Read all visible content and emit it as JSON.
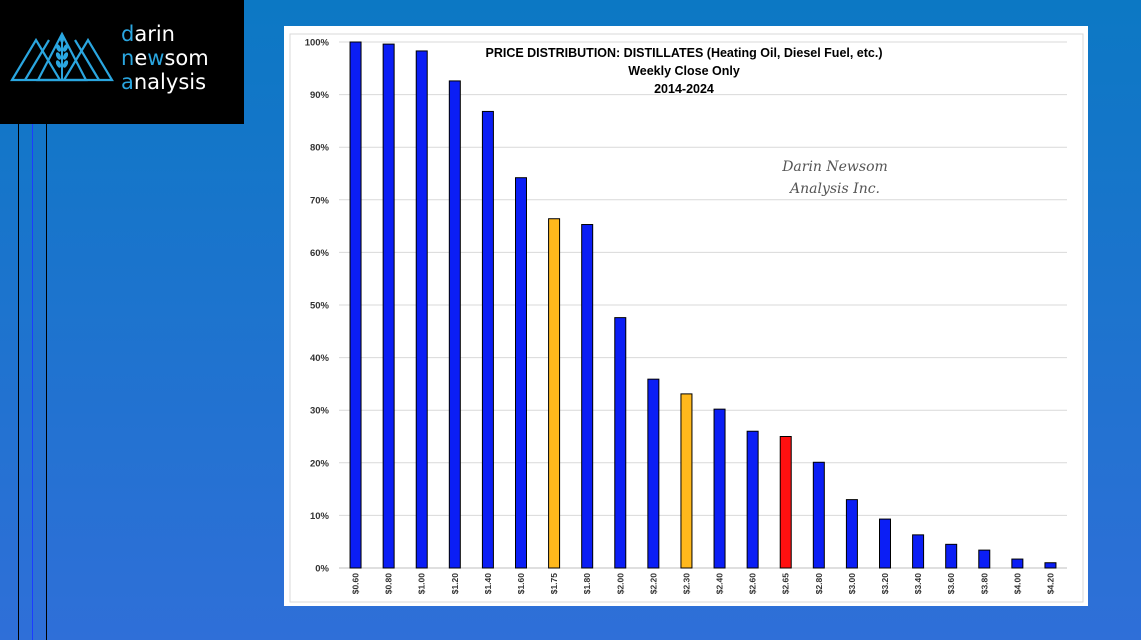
{
  "logo": {
    "line1_initial": "d",
    "line1_rest": "arin",
    "line2_a": "n",
    "line2_b": "e",
    "line2_hl": "w",
    "line2_rest": "som",
    "line3_initial": "a",
    "line3_rest": "nalysis",
    "accent": "#2aa6e0"
  },
  "watermark": {
    "line1": "Darin Newsom",
    "line2": "Analysis Inc."
  },
  "colors": {
    "default_bar": "#0b1ef5",
    "highlight_bar": "#ffb81c",
    "current_bar": "#ff1010"
  },
  "chart_data": {
    "type": "bar",
    "title": "PRICE DISTRIBUTION: DISTILLATES (Heating Oil, Diesel Fuel, etc.)",
    "subtitle1": "Weekly Close Only",
    "subtitle2": "2014-2024",
    "xlabel": "",
    "ylabel": "",
    "ylim": [
      0,
      100
    ],
    "yticks": [
      "0%",
      "10%",
      "20%",
      "30%",
      "40%",
      "50%",
      "60%",
      "70%",
      "80%",
      "90%",
      "100%"
    ],
    "categories": [
      "$0.60",
      "$0.80",
      "$1.00",
      "$1.20",
      "$1.40",
      "$1.60",
      "$1.75",
      "$1.80",
      "$2.00",
      "$2.20",
      "$2.30",
      "$2.40",
      "$2.60",
      "$2.65",
      "$2.80",
      "$3.00",
      "$3.20",
      "$3.40",
      "$3.60",
      "$3.80",
      "$4.00",
      "$4.20"
    ],
    "values": [
      100,
      99.6,
      98.3,
      92.6,
      86.8,
      74.2,
      66.4,
      65.3,
      47.6,
      35.9,
      33.1,
      30.2,
      26.0,
      25.0,
      20.1,
      13.0,
      9.3,
      6.3,
      4.5,
      3.4,
      1.7,
      1.0
    ],
    "bar_colors": [
      "default",
      "default",
      "default",
      "default",
      "default",
      "default",
      "highlight",
      "default",
      "default",
      "default",
      "highlight",
      "default",
      "default",
      "current",
      "default",
      "default",
      "default",
      "default",
      "default",
      "default",
      "default",
      "default"
    ]
  }
}
